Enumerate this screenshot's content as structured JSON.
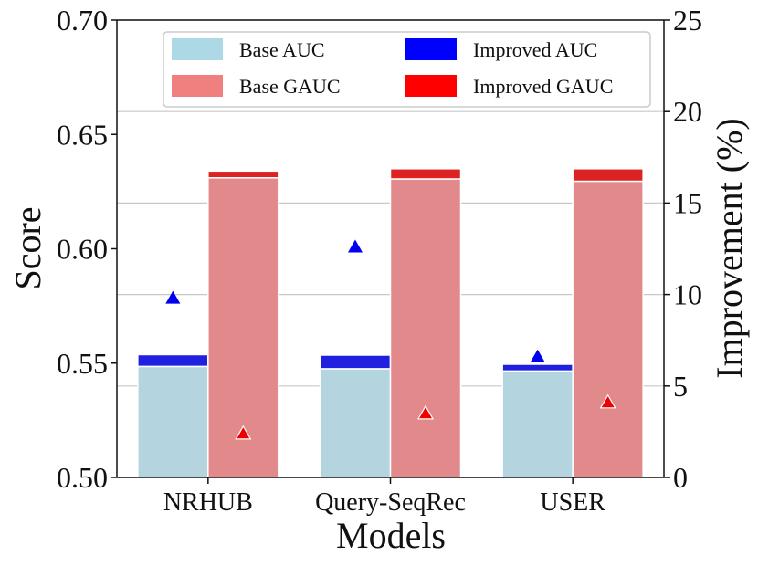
{
  "chart_data": {
    "type": "bar",
    "title": "",
    "xlabel": "Models",
    "ylabel": "Score",
    "y2label": "Improvement (%)",
    "ylim": [
      0.5,
      0.7
    ],
    "y2lim": [
      0,
      25
    ],
    "yticks": [
      "0.50",
      "0.55",
      "0.60",
      "0.65",
      "0.70"
    ],
    "y2ticks": [
      "0",
      "5",
      "10",
      "15",
      "20",
      "25"
    ],
    "categories": [
      "NRHUB",
      "Query-SeqRec",
      "USER"
    ],
    "series": [
      {
        "name": "Base AUC",
        "color": "#b4d5df",
        "values": [
          0.5485,
          0.5475,
          0.5465
        ]
      },
      {
        "name": "Improved AUC",
        "color": "#2020e0",
        "values": [
          0.5537,
          0.5535,
          0.5495
        ]
      },
      {
        "name": "Base GAUC",
        "color": "#e28a8b",
        "values": [
          0.631,
          0.6305,
          0.6295
        ]
      },
      {
        "name": "Improved GAUC",
        "color": "#dd2222",
        "values": [
          0.634,
          0.635,
          0.635
        ]
      }
    ],
    "improvement_markers": [
      {
        "name": "AUC improvement (%)",
        "color": "#0000ee",
        "values": [
          9.8,
          12.6,
          6.6
        ]
      },
      {
        "name": "GAUC improvement (%)",
        "color": "#ee0000",
        "values": [
          2.4,
          3.5,
          4.1
        ]
      }
    ],
    "legend": {
      "placement": "top",
      "entries": [
        {
          "label": "Base AUC",
          "color": "#add8e6"
        },
        {
          "label": "Improved AUC",
          "color": "#0000ff"
        },
        {
          "label": "Base GAUC",
          "color": "#f08080"
        },
        {
          "label": "Improved GAUC",
          "color": "#ff0000"
        }
      ]
    },
    "grid": "horizontal"
  }
}
